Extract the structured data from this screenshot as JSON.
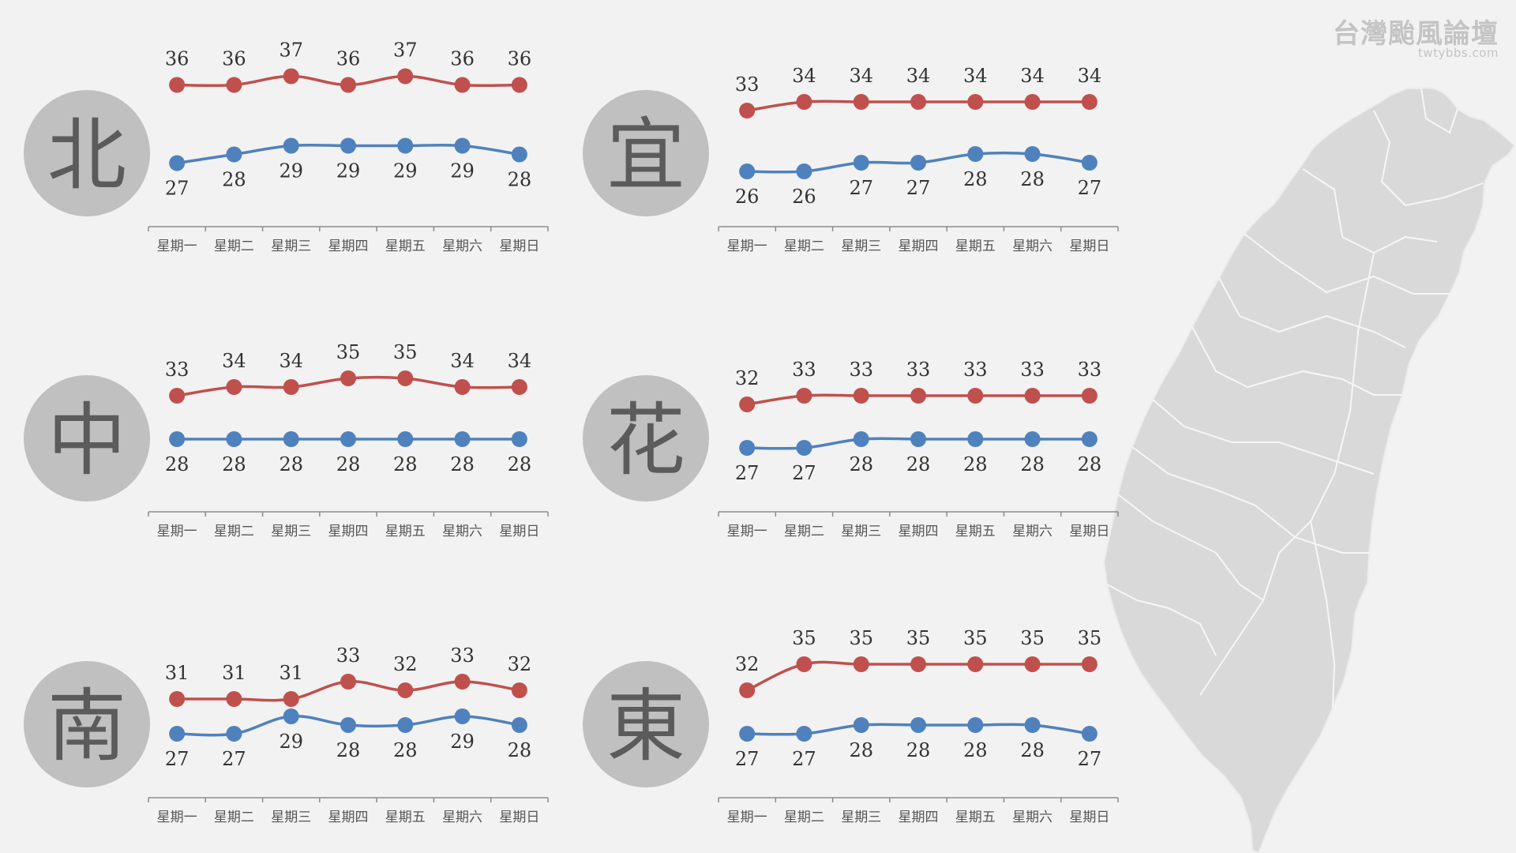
{
  "watermark": {
    "title": "台灣颱風論壇",
    "url": "twtybbs.com"
  },
  "colors": {
    "high": "#c0504d",
    "low": "#4f81bd",
    "axis": "#8c8c8c",
    "label": "#333333",
    "map_fill": "#d9d9d9",
    "map_border": "#ffffff"
  },
  "chart_data": [
    {
      "type": "line",
      "region": "北",
      "categories": [
        "星期一",
        "星期二",
        "星期三",
        "星期四",
        "星期五",
        "星期六",
        "星期日"
      ],
      "series": [
        {
          "values": [
            36,
            36,
            37,
            36,
            37,
            36,
            36
          ]
        },
        {
          "values": [
            27,
            28,
            29,
            29,
            29,
            29,
            28
          ]
        }
      ]
    },
    {
      "type": "line",
      "region": "宜",
      "categories": [
        "星期一",
        "星期二",
        "星期三",
        "星期四",
        "星期五",
        "星期六",
        "星期日"
      ],
      "series": [
        {
          "values": [
            33,
            34,
            34,
            34,
            34,
            34,
            34
          ]
        },
        {
          "values": [
            26,
            26,
            27,
            27,
            28,
            28,
            27
          ]
        }
      ]
    },
    {
      "type": "line",
      "region": "中",
      "categories": [
        "星期一",
        "星期二",
        "星期三",
        "星期四",
        "星期五",
        "星期六",
        "星期日"
      ],
      "series": [
        {
          "values": [
            33,
            34,
            34,
            35,
            35,
            34,
            34
          ]
        },
        {
          "values": [
            28,
            28,
            28,
            28,
            28,
            28,
            28
          ]
        }
      ]
    },
    {
      "type": "line",
      "region": "花",
      "categories": [
        "星期一",
        "星期二",
        "星期三",
        "星期四",
        "星期五",
        "星期六",
        "星期日"
      ],
      "series": [
        {
          "values": [
            32,
            33,
            33,
            33,
            33,
            33,
            33
          ]
        },
        {
          "values": [
            27,
            27,
            28,
            28,
            28,
            28,
            28
          ]
        }
      ]
    },
    {
      "type": "line",
      "region": "南",
      "categories": [
        "星期一",
        "星期二",
        "星期三",
        "星期四",
        "星期五",
        "星期六",
        "星期日"
      ],
      "series": [
        {
          "values": [
            31,
            31,
            31,
            33,
            32,
            33,
            32
          ]
        },
        {
          "values": [
            27,
            27,
            29,
            28,
            28,
            29,
            28
          ]
        }
      ]
    },
    {
      "type": "line",
      "region": "東",
      "categories": [
        "星期一",
        "星期二",
        "星期三",
        "星期四",
        "星期五",
        "星期六",
        "星期日"
      ],
      "series": [
        {
          "values": [
            32,
            35,
            35,
            35,
            35,
            35,
            35
          ]
        },
        {
          "values": [
            27,
            27,
            28,
            28,
            28,
            28,
            27
          ]
        }
      ]
    }
  ]
}
